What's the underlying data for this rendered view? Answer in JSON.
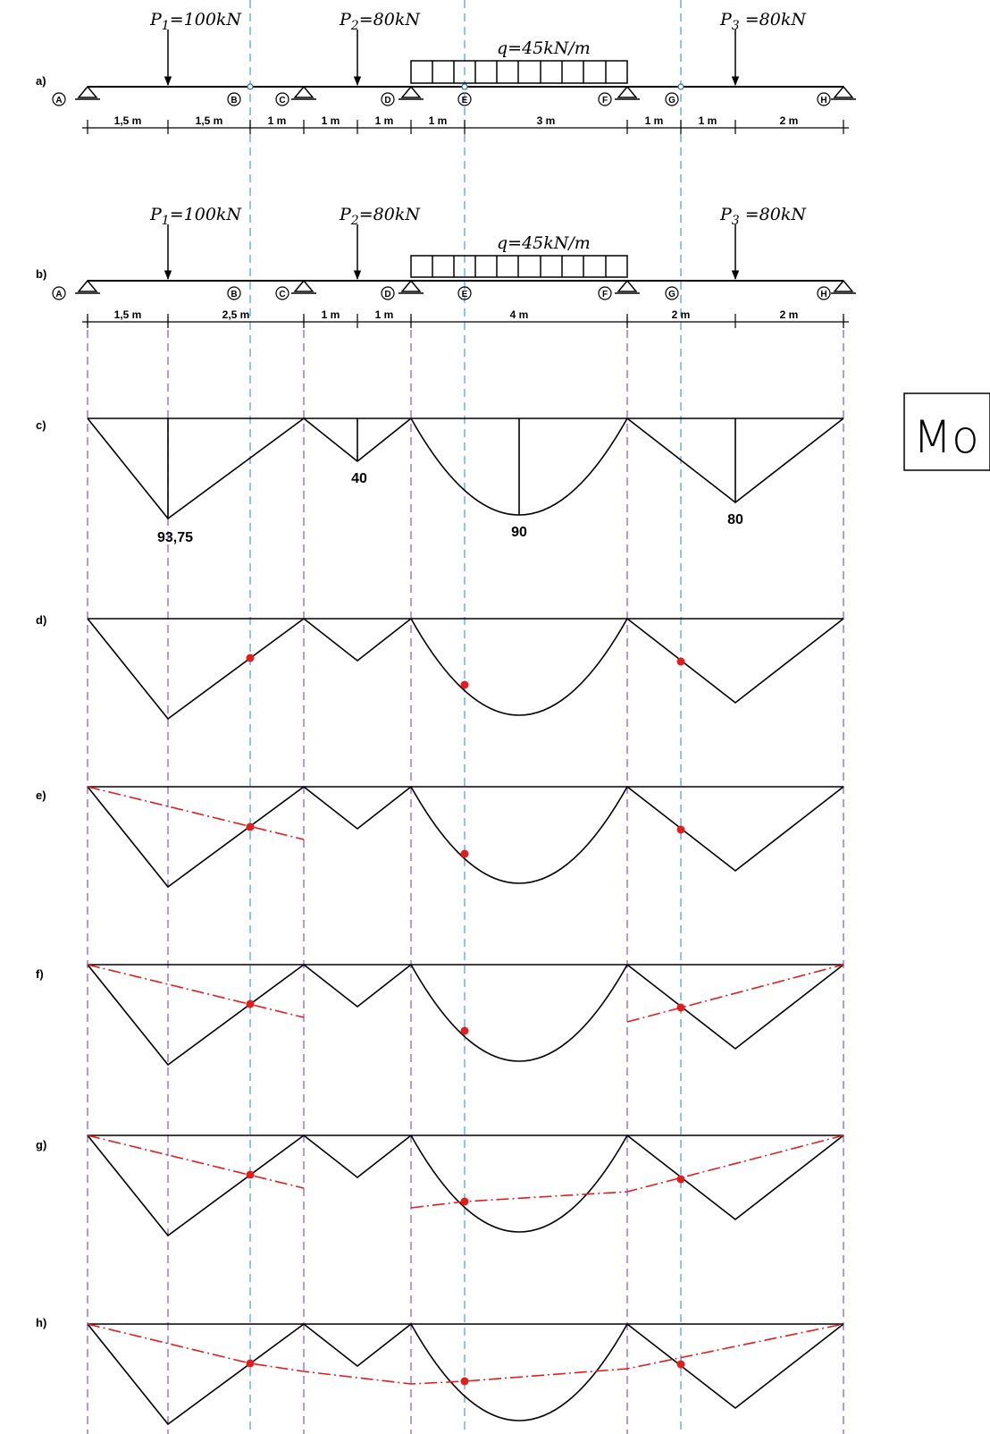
{
  "row_labels": {
    "a": "a)",
    "b": "b)",
    "c": "c)",
    "d": "d)",
    "e": "e)",
    "f": "f)",
    "g": "g)",
    "h": "h)"
  },
  "beam_a": {
    "loads": {
      "p1": {
        "sym": "P",
        "sub": "1",
        "val": "=100kN"
      },
      "p2": {
        "sym": "P",
        "sub": "2",
        "val": "=80kN"
      },
      "p3": {
        "sym": "P",
        "sub": "3",
        "val": " =80kN"
      },
      "q": "q=45kN/m"
    },
    "nodes": [
      "A",
      "B",
      "C",
      "D",
      "E",
      "F",
      "G",
      "H"
    ],
    "dims": [
      "1,5 m",
      "1,5 m",
      "1 m",
      "1 m",
      "1 m",
      "1 m",
      "3 m",
      "1 m",
      "1 m",
      "2 m"
    ]
  },
  "beam_b": {
    "loads": {
      "p1": {
        "sym": "P",
        "sub": "1",
        "val": "=100kN"
      },
      "p2": {
        "sym": "P",
        "sub": "2",
        "val": "=80kN"
      },
      "p3": {
        "sym": "P",
        "sub": "3",
        "val": " =80kN"
      },
      "q": "q=45kN/m"
    },
    "nodes": [
      "A",
      "B",
      "C",
      "D",
      "E",
      "F",
      "G",
      "H"
    ],
    "dims": [
      "1,5 m",
      "2,5 m",
      "1 m",
      "1 m",
      "4 m",
      "2 m",
      "2 m"
    ]
  },
  "moment_values": {
    "v1": "93,75",
    "v2": "40",
    "v3": "90",
    "v4": "80"
  },
  "title_box": "Mo",
  "colors": {
    "line": "#000000",
    "accent": "#e11d1d",
    "blue_guide": "#5aa0e0",
    "purple_guide": "#8a63c8"
  }
}
